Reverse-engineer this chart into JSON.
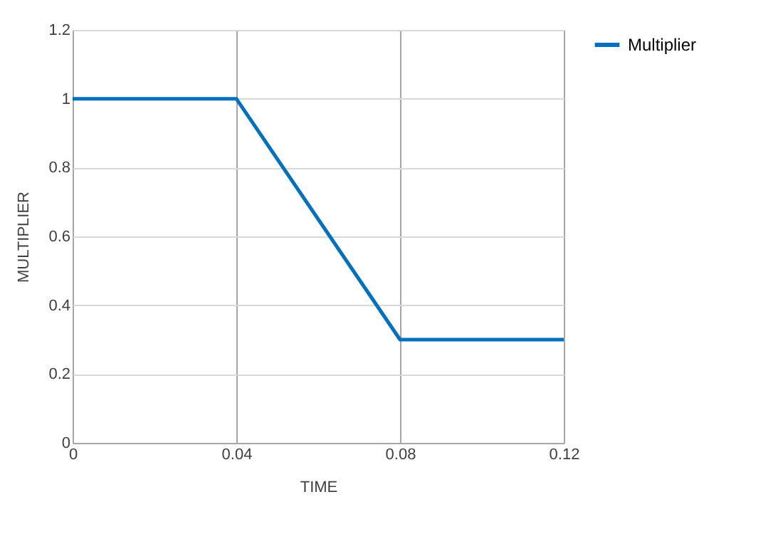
{
  "chart_data": {
    "type": "line",
    "x": [
      0,
      0.04,
      0.08,
      0.12
    ],
    "series": [
      {
        "name": "Multiplier",
        "color": "#0070c0",
        "values": [
          1,
          1,
          0.3,
          0.3
        ]
      }
    ],
    "xlabel": "TIME",
    "ylabel": "MULTIPLIER",
    "xlim": [
      0,
      0.12
    ],
    "xticks": [
      0,
      0.04,
      0.08,
      0.12
    ],
    "ylim": [
      0,
      1.2
    ],
    "yticks": [
      0,
      0.2,
      0.4,
      0.6,
      0.8,
      1,
      1.2
    ],
    "grid": true,
    "legend": "right",
    "marker": "none",
    "line_style": "solid"
  }
}
